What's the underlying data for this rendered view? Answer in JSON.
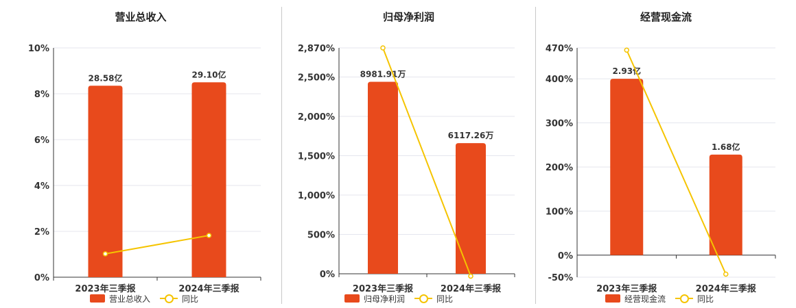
{
  "colors": {
    "bar": "#e84a1c",
    "line": "#f5c400",
    "grid": "#e4e6ee",
    "axis": "#333333"
  },
  "chart_data": [
    {
      "type": "bar",
      "title": "营业总收入",
      "categories": [
        "2023年三季报",
        "2024年三季报"
      ],
      "ylim": [
        0,
        10
      ],
      "ytick_values": [
        0,
        2,
        4,
        6,
        8,
        10
      ],
      "ytick_labels": [
        "0%",
        "2%",
        "4%",
        "6%",
        "8%",
        "10%"
      ],
      "series": [
        {
          "name": "营业总收入",
          "kind": "bar",
          "values": [
            8.35,
            8.5
          ],
          "labels": [
            "28.58亿",
            "29.10亿"
          ]
        },
        {
          "name": "同比",
          "kind": "line",
          "values": [
            1.02,
            1.82
          ]
        }
      ],
      "legend": [
        "营业总收入",
        "同比"
      ],
      "grid": true
    },
    {
      "type": "bar",
      "title": "归母净利润",
      "categories": [
        "2023年三季报",
        "2024年三季报"
      ],
      "ylim": [
        0,
        2870
      ],
      "ytick_values": [
        0,
        500,
        1000,
        1500,
        2000,
        2500,
        2870
      ],
      "ytick_labels": [
        "0%",
        "500%",
        "1,000%",
        "1,500%",
        "2,000%",
        "2,500%",
        "2,870%"
      ],
      "series": [
        {
          "name": "归母净利润",
          "kind": "bar",
          "values": [
            2440,
            1660
          ],
          "labels": [
            "8981.91万",
            "6117.26万"
          ]
        },
        {
          "name": "同比",
          "kind": "line",
          "values": [
            2870,
            -30
          ]
        }
      ],
      "legend": [
        "归母净利润",
        "同比"
      ],
      "grid": true
    },
    {
      "type": "bar",
      "title": "经营现金流",
      "categories": [
        "2023年三季报",
        "2024年三季报"
      ],
      "ylim": [
        -50,
        470
      ],
      "ytick_values": [
        -50,
        0,
        100,
        200,
        300,
        400,
        470
      ],
      "ytick_labels": [
        "-50%",
        "0%",
        "100%",
        "200%",
        "300%",
        "400%",
        "470%"
      ],
      "series": [
        {
          "name": "经营现金流",
          "kind": "bar",
          "values": [
            400,
            228
          ],
          "labels": [
            "2.93亿",
            "1.68亿"
          ]
        },
        {
          "name": "同比",
          "kind": "line",
          "values": [
            465,
            -43
          ]
        }
      ],
      "legend": [
        "经营现金流",
        "同比"
      ],
      "grid": true
    }
  ]
}
